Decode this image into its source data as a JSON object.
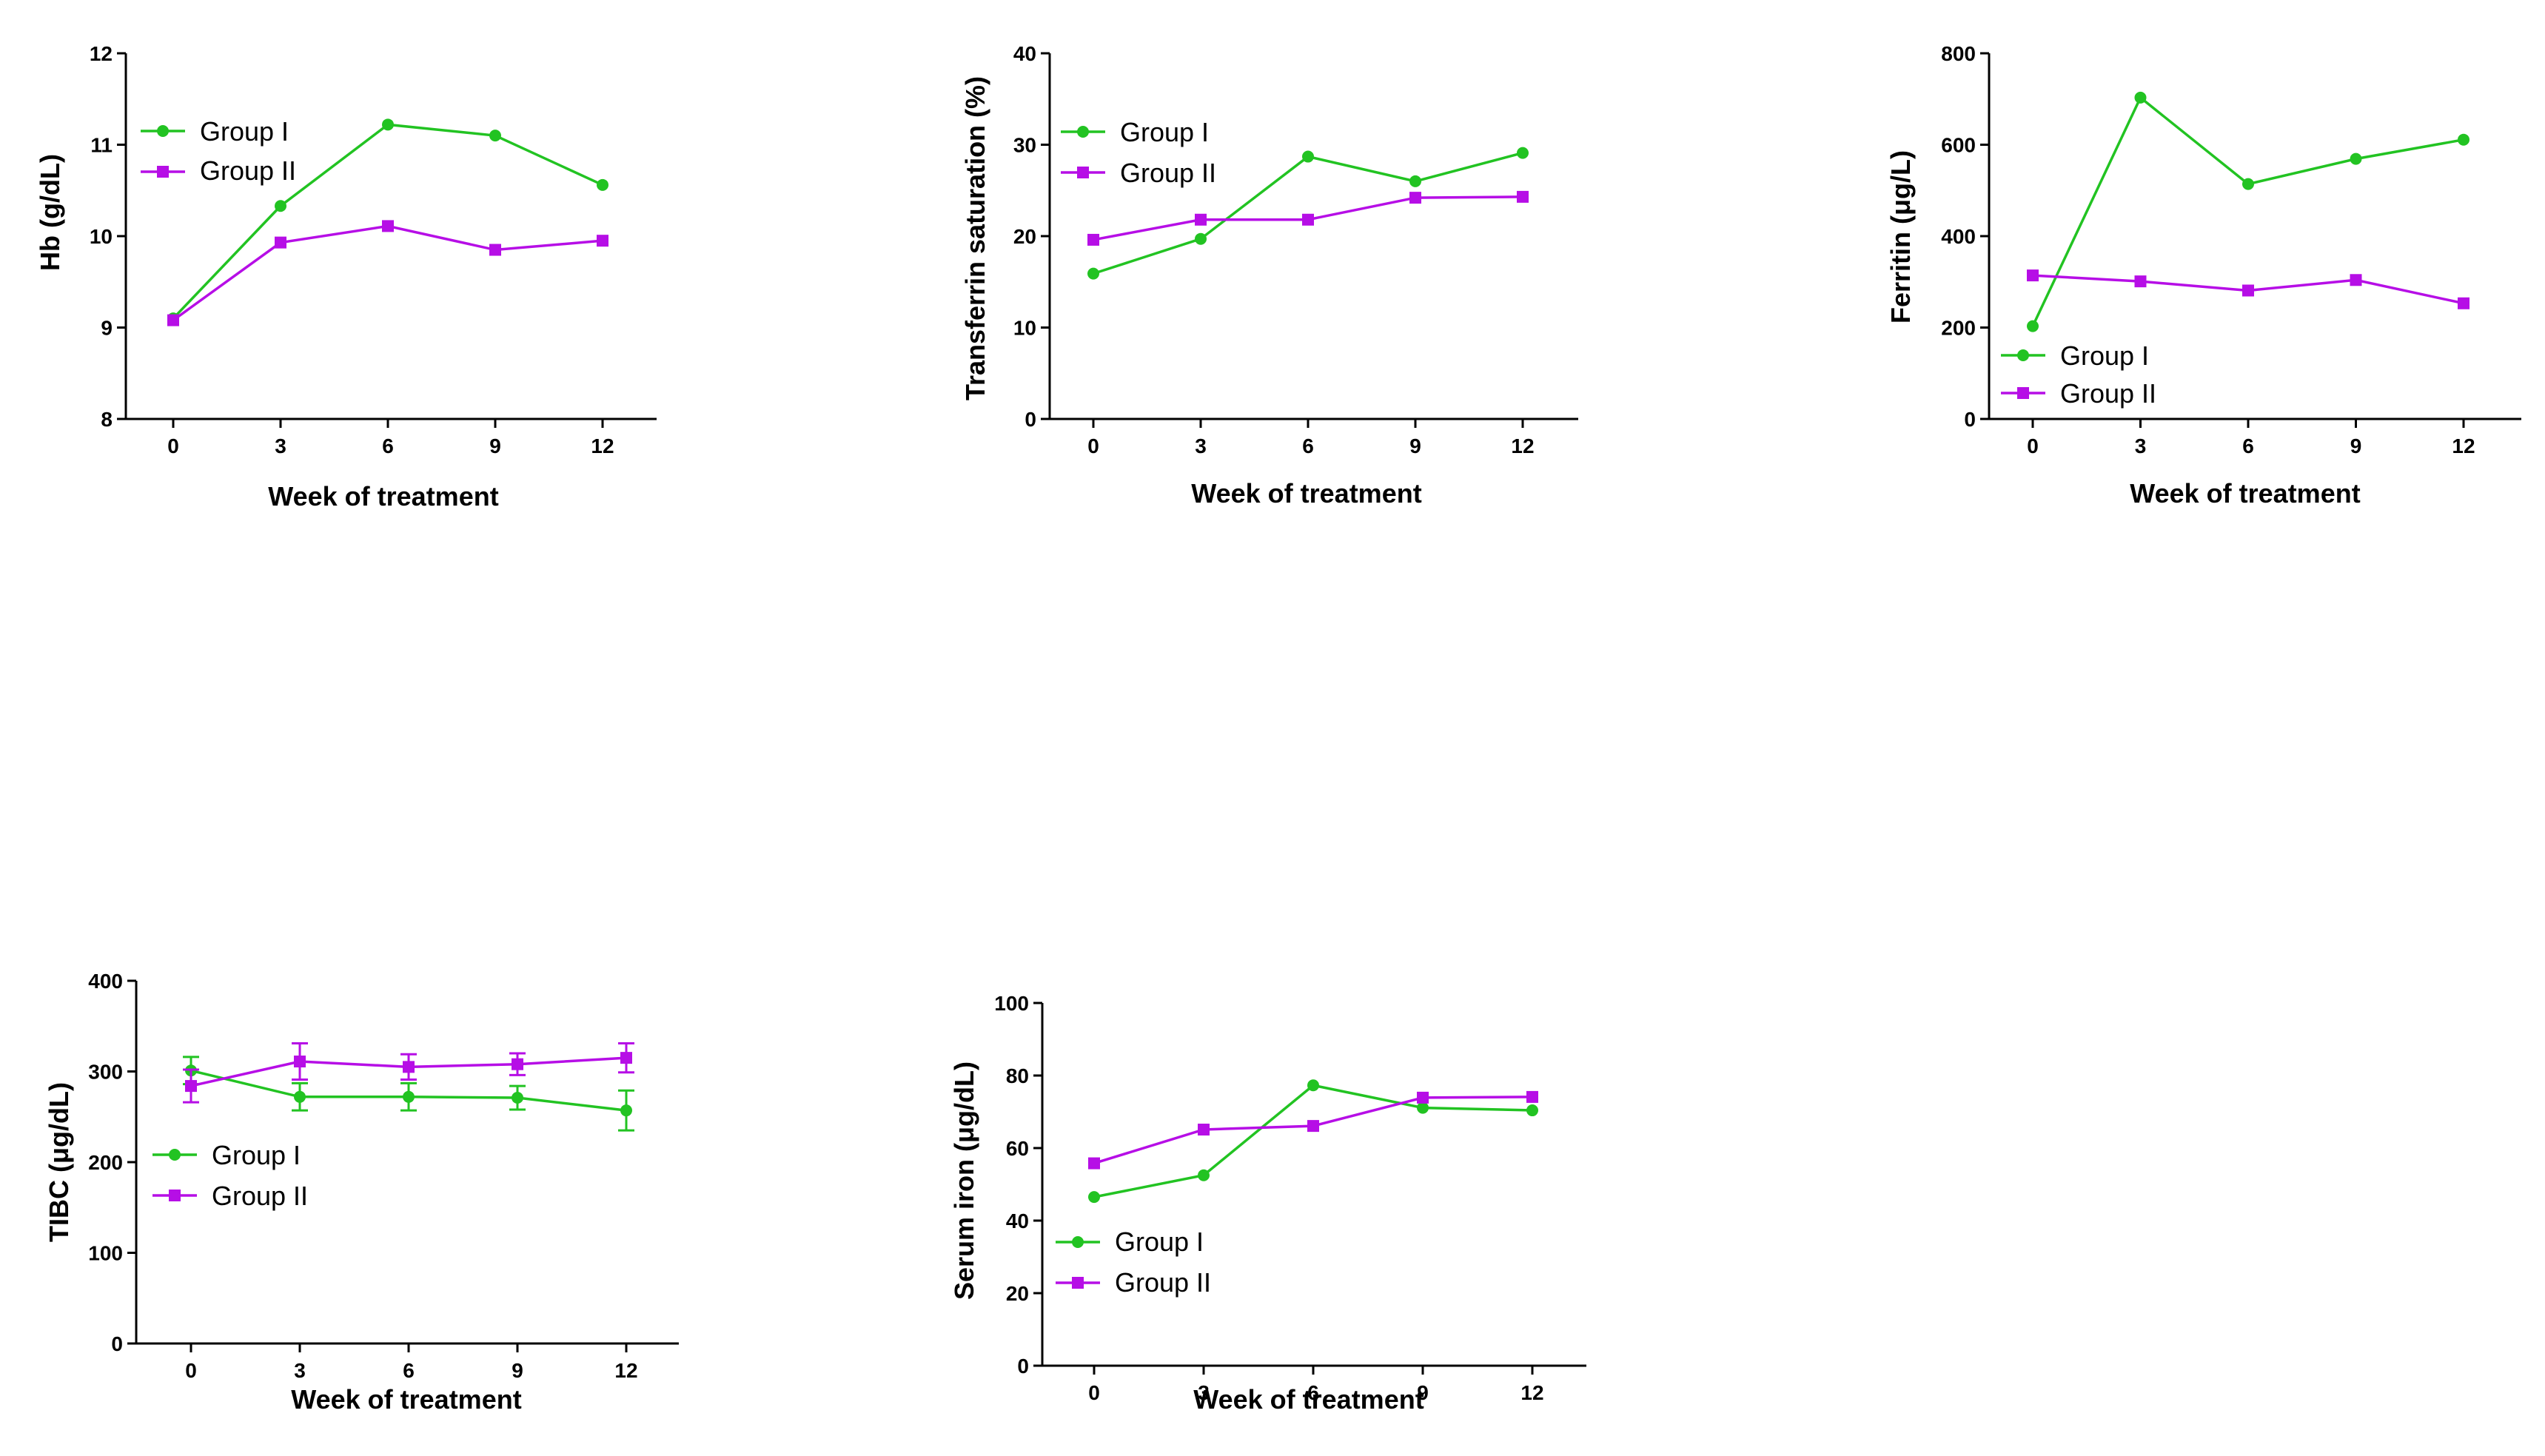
{
  "colors": {
    "group1": "#22c322",
    "group2": "#b60ee6",
    "axis": "#000000"
  },
  "chart_data": [
    {
      "type": "line",
      "x": [
        0,
        3,
        6,
        9,
        12
      ],
      "xticks": [
        "0",
        "3",
        "6",
        "9",
        "12"
      ],
      "xlabel": "Week of treatment",
      "ylabel": "Hb (g/dL)",
      "ylim": [
        8,
        12
      ],
      "yticks": [
        "8",
        "9",
        "10",
        "11",
        "12"
      ],
      "legend_position": "top-left",
      "series": [
        {
          "name": "Group I",
          "marker": "circle",
          "values": [
            9.1,
            10.33,
            11.22,
            11.1,
            10.56
          ]
        },
        {
          "name": "Group II",
          "marker": "square",
          "values": [
            9.08,
            9.93,
            10.11,
            9.85,
            9.95
          ]
        }
      ]
    },
    {
      "type": "line",
      "x": [
        0,
        3,
        6,
        9,
        12
      ],
      "xticks": [
        "0",
        "3",
        "6",
        "9",
        "12"
      ],
      "xlabel": "Week of treatment",
      "ylabel": "Transferrin saturation (%)",
      "ylim": [
        0,
        40
      ],
      "yticks": [
        "0",
        "10",
        "20",
        "30",
        "40"
      ],
      "legend_position": "top-left",
      "series": [
        {
          "name": "Group I",
          "marker": "circle",
          "values": [
            15.9,
            19.7,
            28.7,
            26.0,
            29.1
          ]
        },
        {
          "name": "Group II",
          "marker": "square",
          "values": [
            19.6,
            21.8,
            21.8,
            24.2,
            24.3
          ]
        }
      ]
    },
    {
      "type": "line",
      "x": [
        0,
        3,
        6,
        9,
        12
      ],
      "xticks": [
        "0",
        "3",
        "6",
        "9",
        "12"
      ],
      "xlabel": "Week of treatment",
      "ylabel": "Ferritin (μg/L)",
      "ylim": [
        0,
        800
      ],
      "yticks": [
        "0",
        "200",
        "400",
        "600",
        "800"
      ],
      "legend_position": "bottom-left",
      "series": [
        {
          "name": "Group I",
          "marker": "circle",
          "values": [
            203,
            703,
            514,
            569,
            611
          ]
        },
        {
          "name": "Group II",
          "marker": "square",
          "values": [
            314,
            301,
            281,
            304,
            253
          ]
        }
      ]
    },
    {
      "type": "line",
      "x": [
        0,
        3,
        6,
        9,
        12
      ],
      "xticks": [
        "0",
        "3",
        "6",
        "9",
        "12"
      ],
      "xlabel": "Week of treatment",
      "ylabel": "TIBC (μg/dL)",
      "ylim": [
        0,
        400
      ],
      "yticks": [
        "0",
        "100",
        "200",
        "300",
        "400"
      ],
      "legend_position": "middle-left",
      "series": [
        {
          "name": "Group I",
          "marker": "circle",
          "values": [
            301,
            272,
            272,
            271,
            257
          ],
          "errors": [
            15,
            15,
            15,
            13,
            22
          ]
        },
        {
          "name": "Group II",
          "marker": "square",
          "values": [
            284,
            311,
            305,
            308,
            315
          ],
          "errors": [
            18,
            20,
            14,
            12,
            16
          ]
        }
      ]
    },
    {
      "type": "line",
      "x": [
        0,
        3,
        6,
        9,
        12
      ],
      "xticks": [
        "0",
        "3",
        "6",
        "9",
        "12"
      ],
      "xlabel": "Week of treatment",
      "ylabel": "Serum iron (μg/dL)",
      "ylim": [
        0,
        100
      ],
      "yticks": [
        "0",
        "20",
        "40",
        "60",
        "80",
        "100"
      ],
      "legend_position": "bottom-left",
      "series": [
        {
          "name": "Group I",
          "marker": "circle",
          "values": [
            46.5,
            52.5,
            77.3,
            71.1,
            70.4
          ]
        },
        {
          "name": "Group II",
          "marker": "square",
          "values": [
            55.8,
            65.1,
            66.1,
            73.9,
            74.1
          ]
        }
      ]
    }
  ]
}
